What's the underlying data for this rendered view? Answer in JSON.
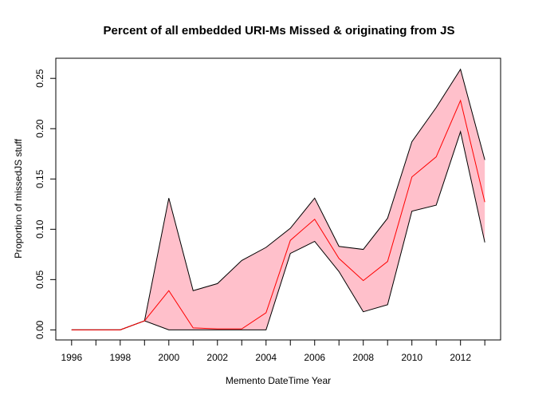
{
  "chart_data": {
    "type": "area",
    "title": "Percent of all embedded URI-Ms Missed & originating from JS",
    "xlabel": "Memento DateTime Year",
    "ylabel": "Proportion of missedJS stuff",
    "xlim": [
      1995.35,
      2013.65
    ],
    "ylim": [
      -0.01,
      0.27
    ],
    "x_ticks": [
      1996,
      1997,
      1998,
      1999,
      2000,
      2001,
      2002,
      2003,
      2004,
      2005,
      2006,
      2007,
      2008,
      2009,
      2010,
      2011,
      2012,
      2013
    ],
    "x_tick_labels": [
      "1996",
      "",
      "1998",
      "",
      "2000",
      "",
      "2002",
      "",
      "2004",
      "",
      "2006",
      "",
      "2008",
      "",
      "2010",
      "",
      "2012",
      ""
    ],
    "y_ticks": [
      0.0,
      0.05,
      0.1,
      0.15,
      0.2,
      0.25
    ],
    "y_tick_labels": [
      "0.00",
      "0.05",
      "0.10",
      "0.15",
      "0.20",
      "0.25"
    ],
    "x": [
      1996,
      1997,
      1998,
      1999,
      2000,
      2001,
      2002,
      2003,
      2004,
      2005,
      2006,
      2007,
      2008,
      2009,
      2010,
      2011,
      2012,
      2013
    ],
    "series": [
      {
        "role": "upper",
        "color": "#000000",
        "values": [
          0.0,
          0.0,
          0.0,
          0.009,
          0.131,
          0.039,
          0.046,
          0.069,
          0.082,
          0.101,
          0.131,
          0.083,
          0.08,
          0.111,
          0.187,
          0.221,
          0.259,
          0.169
        ]
      },
      {
        "role": "mean",
        "color": "#ff0000",
        "values": [
          0.0,
          0.0,
          0.0,
          0.009,
          0.039,
          0.002,
          0.001,
          0.001,
          0.017,
          0.089,
          0.11,
          0.071,
          0.049,
          0.068,
          0.152,
          0.172,
          0.228,
          0.127
        ]
      },
      {
        "role": "lower",
        "color": "#000000",
        "values": [
          0.0,
          0.0,
          0.0,
          0.009,
          0.0,
          0.0,
          0.0,
          0.0,
          0.0,
          0.076,
          0.088,
          0.058,
          0.018,
          0.025,
          0.118,
          0.124,
          0.197,
          0.087
        ]
      }
    ],
    "band_fill": "#ffc0cb",
    "grid": false,
    "legend": "none"
  }
}
